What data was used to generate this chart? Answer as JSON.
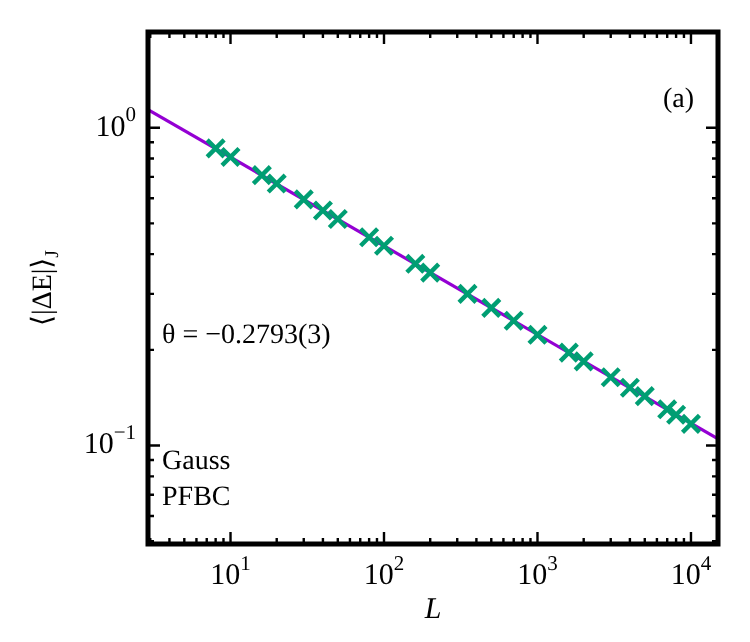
{
  "chart_data": {
    "type": "scatter",
    "xlabel": "L",
    "ylabel": "⟨|ΔE|⟩$_{J}$",
    "log": "xy",
    "legend": false,
    "marker": "cross",
    "annotations": [
      "(a)",
      "θ = −0.2793(3)",
      "Gauss",
      "PFBC"
    ],
    "xlim": [
      2.9,
      15000
    ],
    "ylim": [
      0.049,
      2.0
    ],
    "xticks": [
      {
        "value": 3,
        "label": null
      },
      {
        "value": 4,
        "label": null
      },
      {
        "value": 5,
        "label": null
      },
      {
        "value": 6,
        "label": null
      },
      {
        "value": 7,
        "label": null
      },
      {
        "value": 8,
        "label": null
      },
      {
        "value": 9,
        "label": null
      },
      {
        "value": 10,
        "label": "10$^{1}$"
      },
      {
        "value": 20,
        "label": null
      },
      {
        "value": 30,
        "label": null
      },
      {
        "value": 40,
        "label": null
      },
      {
        "value": 50,
        "label": null
      },
      {
        "value": 60,
        "label": null
      },
      {
        "value": 70,
        "label": null
      },
      {
        "value": 80,
        "label": null
      },
      {
        "value": 90,
        "label": null
      },
      {
        "value": 100,
        "label": "10$^{2}$"
      },
      {
        "value": 200,
        "label": null
      },
      {
        "value": 300,
        "label": null
      },
      {
        "value": 400,
        "label": null
      },
      {
        "value": 500,
        "label": null
      },
      {
        "value": 600,
        "label": null
      },
      {
        "value": 700,
        "label": null
      },
      {
        "value": 800,
        "label": null
      },
      {
        "value": 900,
        "label": null
      },
      {
        "value": 1000,
        "label": "10$^{3}$"
      },
      {
        "value": 2000,
        "label": null
      },
      {
        "value": 3000,
        "label": null
      },
      {
        "value": 4000,
        "label": null
      },
      {
        "value": 5000,
        "label": null
      },
      {
        "value": 6000,
        "label": null
      },
      {
        "value": 7000,
        "label": null
      },
      {
        "value": 8000,
        "label": null
      },
      {
        "value": 9000,
        "label": null
      },
      {
        "value": 10000,
        "label": "10$^{4}$"
      }
    ],
    "yticks": [
      {
        "value": 0.05,
        "label": null
      },
      {
        "value": 0.06,
        "label": null
      },
      {
        "value": 0.07,
        "label": null
      },
      {
        "value": 0.08,
        "label": null
      },
      {
        "value": 0.09,
        "label": null
      },
      {
        "value": 0.1,
        "label": "10$^{−1}$"
      },
      {
        "value": 0.2,
        "label": null
      },
      {
        "value": 0.3,
        "label": null
      },
      {
        "value": 0.4,
        "label": null
      },
      {
        "value": 0.5,
        "label": null
      },
      {
        "value": 0.6,
        "label": null
      },
      {
        "value": 0.7,
        "label": null
      },
      {
        "value": 0.8,
        "label": null
      },
      {
        "value": 0.9,
        "label": null
      },
      {
        "value": 1,
        "label": "10$^{0}$"
      },
      {
        "value": 2,
        "label": null
      }
    ],
    "series": [
      {
        "type": "line",
        "color": "#9400d3",
        "marker": "none",
        "x": [
          2.9,
          15000
        ],
        "values": [
          1.14,
          0.105
        ]
      },
      {
        "color": "#009e73",
        "x": [
          8,
          10,
          16,
          20,
          30,
          40,
          50,
          80,
          100,
          160,
          200,
          350,
          500,
          700,
          1000,
          1600,
          2000,
          3000,
          4000,
          5000,
          7000,
          8000,
          10000
        ],
        "values": [
          0.861,
          0.809,
          0.709,
          0.667,
          0.595,
          0.549,
          0.516,
          0.452,
          0.425,
          0.373,
          0.35,
          0.3,
          0.271,
          0.247,
          0.223,
          0.196,
          0.184,
          0.164,
          0.152,
          0.143,
          0.13,
          0.125,
          0.117
        ]
      }
    ]
  }
}
